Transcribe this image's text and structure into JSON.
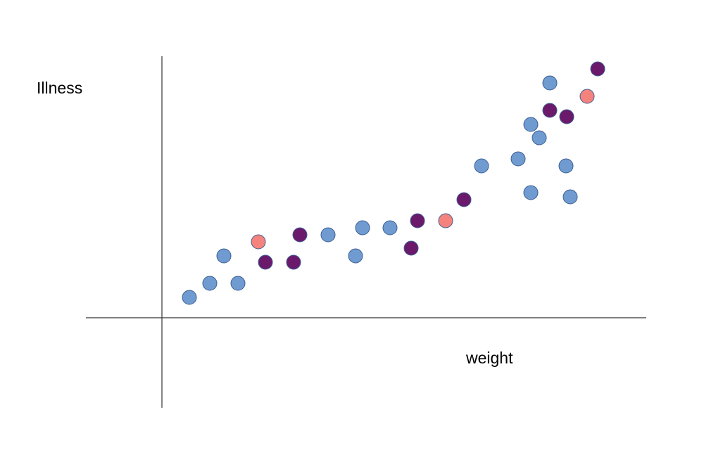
{
  "chart_data": {
    "type": "scatter",
    "x_label": "weight",
    "y_label": "Illness",
    "xlim": [
      -10.8,
      68.8
    ],
    "ylim": [
      -12.8,
      37.2
    ],
    "series": [
      {
        "color": "#6f9bd1",
        "x": [
          3.9,
          6.8,
          10.8,
          8.8,
          23.6,
          28.5,
          32.4,
          27.5,
          45.4,
          50.6,
          52.4,
          53.6,
          55.1,
          57.4,
          52.4,
          58.0
        ],
        "values": [
          2.9,
          4.9,
          4.9,
          8.8,
          11.8,
          12.8,
          12.8,
          8.8,
          21.6,
          22.6,
          27.5,
          25.6,
          33.4,
          21.6,
          17.8,
          17.2
        ]
      },
      {
        "color": "#6b1a6b",
        "x": [
          14.7,
          18.7,
          19.6,
          35.4,
          36.3,
          42.9,
          55.1,
          57.5,
          61.9
        ],
        "values": [
          7.9,
          7.9,
          11.8,
          9.9,
          13.8,
          16.8,
          29.5,
          28.6,
          35.4
        ]
      },
      {
        "color": "#f4837d",
        "x": [
          13.7,
          40.3,
          60.4
        ],
        "values": [
          10.8,
          13.8,
          31.5
        ]
      }
    ]
  }
}
